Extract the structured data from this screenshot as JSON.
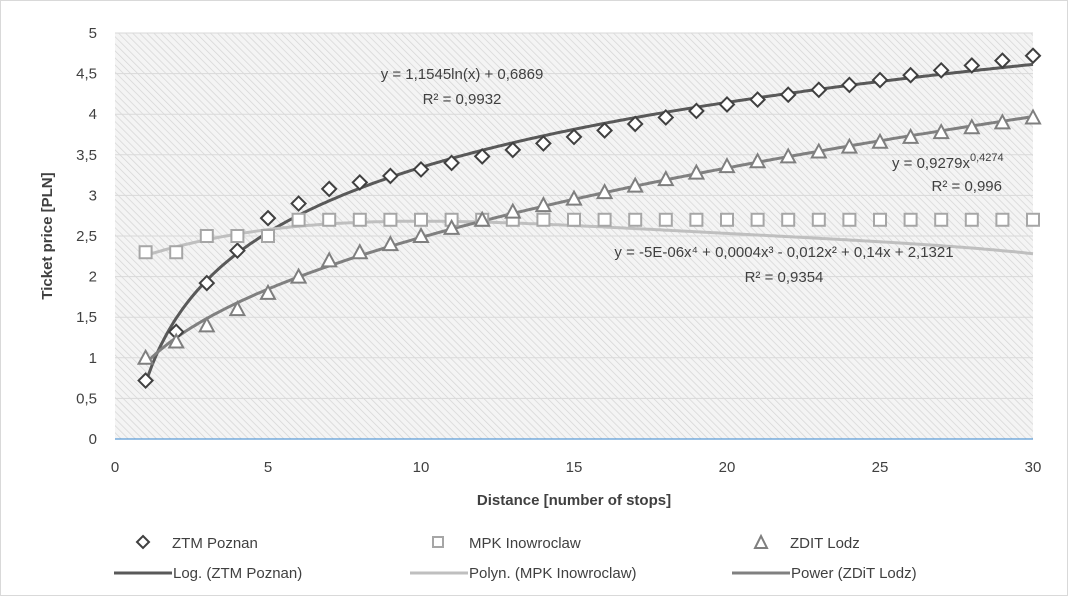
{
  "chart_data": {
    "type": "scatter",
    "title": "",
    "xlabel": "Distance [number of stops]",
    "ylabel": "Ticket price [PLN]",
    "xlim": [
      0,
      30
    ],
    "ylim": [
      0,
      5
    ],
    "x_ticks": [
      "0",
      "5",
      "10",
      "15",
      "20",
      "25",
      "30"
    ],
    "y_ticks": [
      "0",
      "0,5",
      "1",
      "1,5",
      "2",
      "2,5",
      "3",
      "3,5",
      "4",
      "4,5",
      "5"
    ],
    "x_tick_values": [
      0,
      5,
      10,
      15,
      20,
      25,
      30
    ],
    "y_tick_values": [
      0,
      0.5,
      1,
      1.5,
      2,
      2.5,
      3,
      3.5,
      4,
      4.5,
      5
    ],
    "grid": true,
    "legend_position": "bottom",
    "series": [
      {
        "name": "ZTM Poznan",
        "marker": "diamond",
        "color": "#404040",
        "x": [
          1,
          2,
          3,
          4,
          5,
          6,
          7,
          8,
          9,
          10,
          11,
          12,
          13,
          14,
          15,
          16,
          17,
          18,
          19,
          20,
          21,
          22,
          23,
          24,
          25,
          26,
          27,
          28,
          29,
          30
        ],
        "y": [
          0.72,
          1.32,
          1.92,
          2.32,
          2.72,
          2.9,
          3.08,
          3.16,
          3.24,
          3.32,
          3.4,
          3.48,
          3.56,
          3.64,
          3.72,
          3.8,
          3.88,
          3.96,
          4.04,
          4.12,
          4.18,
          4.24,
          4.3,
          4.36,
          4.42,
          4.48,
          4.54,
          4.6,
          4.66,
          4.72
        ]
      },
      {
        "name": "MPK Inowroclaw",
        "marker": "square",
        "color": "#a6a6a6",
        "x": [
          1,
          2,
          3,
          4,
          5,
          6,
          7,
          8,
          9,
          10,
          11,
          12,
          13,
          14,
          15,
          16,
          17,
          18,
          19,
          20,
          21,
          22,
          23,
          24,
          25,
          26,
          27,
          28,
          29,
          30
        ],
        "y": [
          2.3,
          2.3,
          2.5,
          2.5,
          2.5,
          2.7,
          2.7,
          2.7,
          2.7,
          2.7,
          2.7,
          2.7,
          2.7,
          2.7,
          2.7,
          2.7,
          2.7,
          2.7,
          2.7,
          2.7,
          2.7,
          2.7,
          2.7,
          2.7,
          2.7,
          2.7,
          2.7,
          2.7,
          2.7,
          2.7
        ]
      },
      {
        "name": "ZDIT Lodz",
        "marker": "triangle",
        "color": "#7f7f7f",
        "x": [
          1,
          2,
          3,
          4,
          5,
          6,
          7,
          8,
          9,
          10,
          11,
          12,
          13,
          14,
          15,
          16,
          17,
          18,
          19,
          20,
          21,
          22,
          23,
          24,
          25,
          26,
          27,
          28,
          29,
          30
        ],
        "y": [
          1.0,
          1.2,
          1.4,
          1.6,
          1.8,
          2.0,
          2.2,
          2.3,
          2.4,
          2.5,
          2.6,
          2.7,
          2.8,
          2.88,
          2.96,
          3.04,
          3.12,
          3.2,
          3.28,
          3.36,
          3.42,
          3.48,
          3.54,
          3.6,
          3.66,
          3.72,
          3.78,
          3.84,
          3.9,
          3.96
        ]
      }
    ],
    "trendlines": [
      {
        "name": "Log. (ZTM Poznan)",
        "kind": "log",
        "a": 1.1545,
        "b": 0.6869,
        "color": "#595959",
        "equation": "y = 1,1545ln(x) + 0,6869",
        "r2": "R² = 0,9932"
      },
      {
        "name": "Polyn. (MPK Inowroclaw)",
        "kind": "poly",
        "coef": [
          2.1321,
          0.14,
          -0.012,
          0.0004,
          -5e-06
        ],
        "color": "#bfbfbf",
        "equation": "y = -5E-06x⁴ + 0,0004x³ - 0,012x² + 0,14x + 2,1321",
        "r2": "R² = 0,9354"
      },
      {
        "name": "Power (ZDiT Lodz)",
        "kind": "power",
        "a": 0.9279,
        "b": 0.4274,
        "color": "#808080",
        "equation_base": "y = 0,9279x",
        "equation_exp": "0,4274",
        "r2": "R² = 0,996"
      }
    ]
  }
}
